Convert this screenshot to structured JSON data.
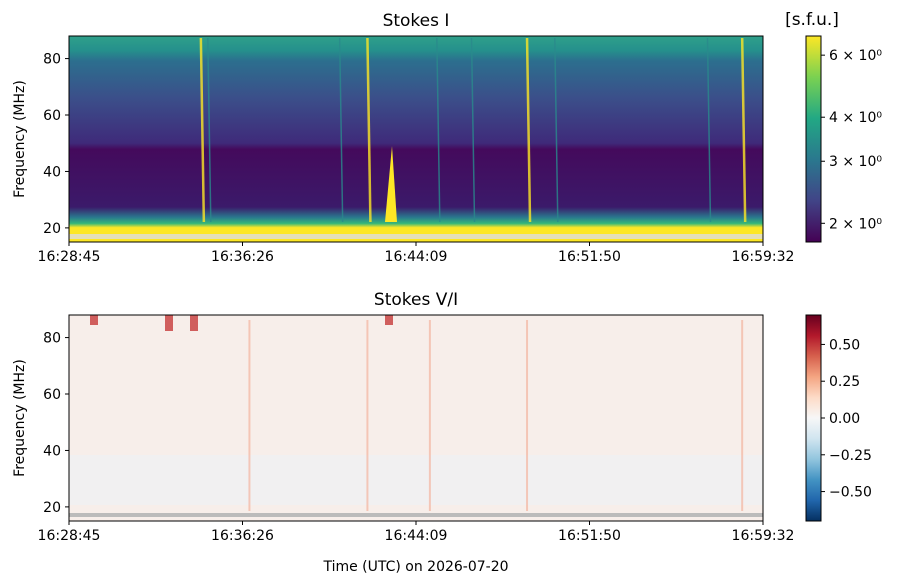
{
  "chart_data": [
    {
      "type": "heatmap",
      "title": "Stokes I",
      "ylabel": "Frequency (MHz)",
      "x": [
        "16:28:45",
        "16:36:26",
        "16:44:09",
        "16:51:50",
        "16:59:32"
      ],
      "ylim": [
        15,
        88
      ],
      "yticks": [
        20,
        40,
        60,
        80
      ],
      "colormap": "viridis",
      "colorbar_label": "[s.f.u.]",
      "colorbar_log": true,
      "clim": [
        1.77,
        6.8
      ],
      "cticks": [
        {
          "value": 2,
          "label": "2 × 10⁰"
        },
        {
          "value": 3,
          "label": "3 × 10⁰"
        },
        {
          "value": 4,
          "label": "4 × 10⁰"
        },
        {
          "value": 6,
          "label": "6 × 10⁰"
        }
      ]
    },
    {
      "type": "heatmap",
      "title": "Stokes V/I",
      "ylabel": "Frequency (MHz)",
      "xlabel": "Time (UTC) on 2026-07-20",
      "x": [
        "16:28:45",
        "16:36:26",
        "16:44:09",
        "16:51:50",
        "16:59:32"
      ],
      "ylim": [
        15,
        88
      ],
      "yticks": [
        20,
        40,
        60,
        80
      ],
      "colormap": "RdBu_r",
      "colorbar_log": false,
      "clim": [
        -0.7,
        0.7
      ],
      "cticks": [
        {
          "value": -0.5,
          "label": "−0.50"
        },
        {
          "value": -0.25,
          "label": "−0.25"
        },
        {
          "value": 0,
          "label": "0.00"
        },
        {
          "value": 0.25,
          "label": "0.25"
        },
        {
          "value": 0.5,
          "label": "0.50"
        }
      ]
    }
  ]
}
